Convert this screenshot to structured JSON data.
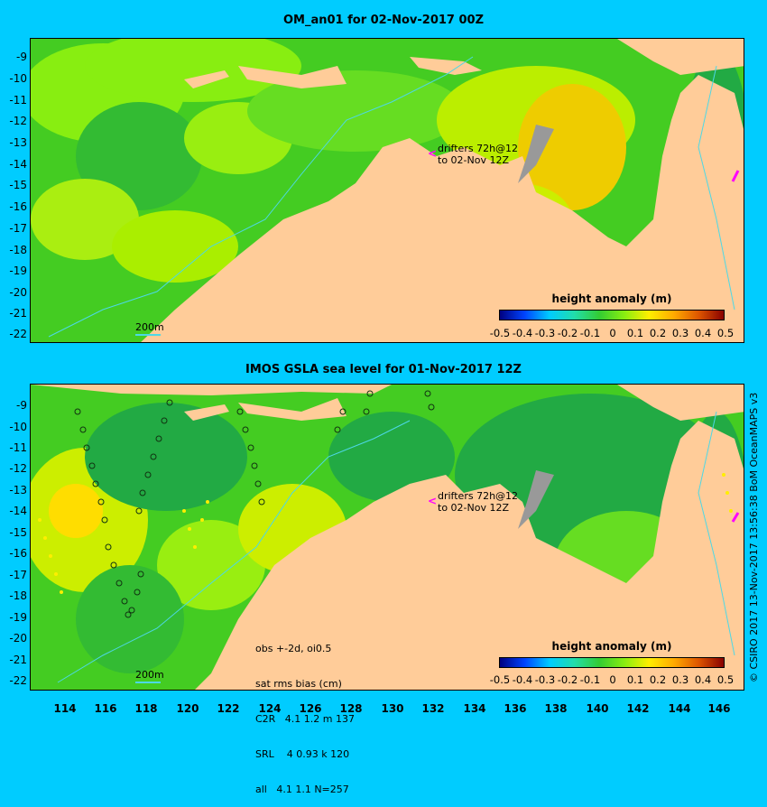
{
  "top_panel": {
    "title": "OM_an01 for 02-Nov-2017 00Z",
    "y_ticks": [
      "-9",
      "-10",
      "-11",
      "-12",
      "-13",
      "-14",
      "-15",
      "-16",
      "-17",
      "-18",
      "-19",
      "-20",
      "-21",
      "-22"
    ],
    "colorbar_title": "height anomaly (m)",
    "colorbar_ticks": [
      "-0.5",
      "-0.4",
      "-0.3",
      "-0.2",
      "-0.1",
      "0",
      "0.1",
      "0.2",
      "0.3",
      "0.4",
      "0.5"
    ],
    "drifters_line1": "drifters 72h@12",
    "drifters_line2": "to 02-Nov 12Z",
    "isobath_label": "200m"
  },
  "bottom_panel": {
    "title": "IMOS GSLA sea level  for 01-Nov-2017 12Z",
    "y_ticks": [
      "-9",
      "-10",
      "-11",
      "-12",
      "-13",
      "-14",
      "-15",
      "-16",
      "-17",
      "-18",
      "-19",
      "-20",
      "-21",
      "-22"
    ],
    "x_ticks": [
      "114",
      "116",
      "118",
      "120",
      "122",
      "124",
      "126",
      "128",
      "130",
      "132",
      "134",
      "136",
      "138",
      "140",
      "142",
      "144",
      "146"
    ],
    "colorbar_title": "height anomaly (m)",
    "colorbar_ticks": [
      "-0.5",
      "-0.4",
      "-0.3",
      "-0.2",
      "-0.1",
      "0",
      "0.1",
      "0.2",
      "0.3",
      "0.4",
      "0.5"
    ],
    "drifters_line1": "drifters 72h@12",
    "drifters_line2": "to 02-Nov 12Z",
    "isobath_label": "200m",
    "stats_lines": [
      "obs +-2d, oi0.5",
      "sat rms bias (cm)",
      "C2R   4.1 1.2 m 137",
      "SRL    4 0.93 k 120",
      "all   4.1 1.1 N=257"
    ]
  },
  "credit": "© CSIRO 2017  13-Nov-2017 13:56:38 BoM OceanMAPS v3",
  "colors": {
    "background": "#00ccff",
    "land": "#ffcc99",
    "ocean_green": "#33cc33",
    "ocean_light": "#66ee22",
    "ocean_yellow": "#ccee00",
    "shelf_grey": "#999999",
    "drifter_magenta": "#ff00ff",
    "isobath_cyan": "#4dd8e6"
  }
}
